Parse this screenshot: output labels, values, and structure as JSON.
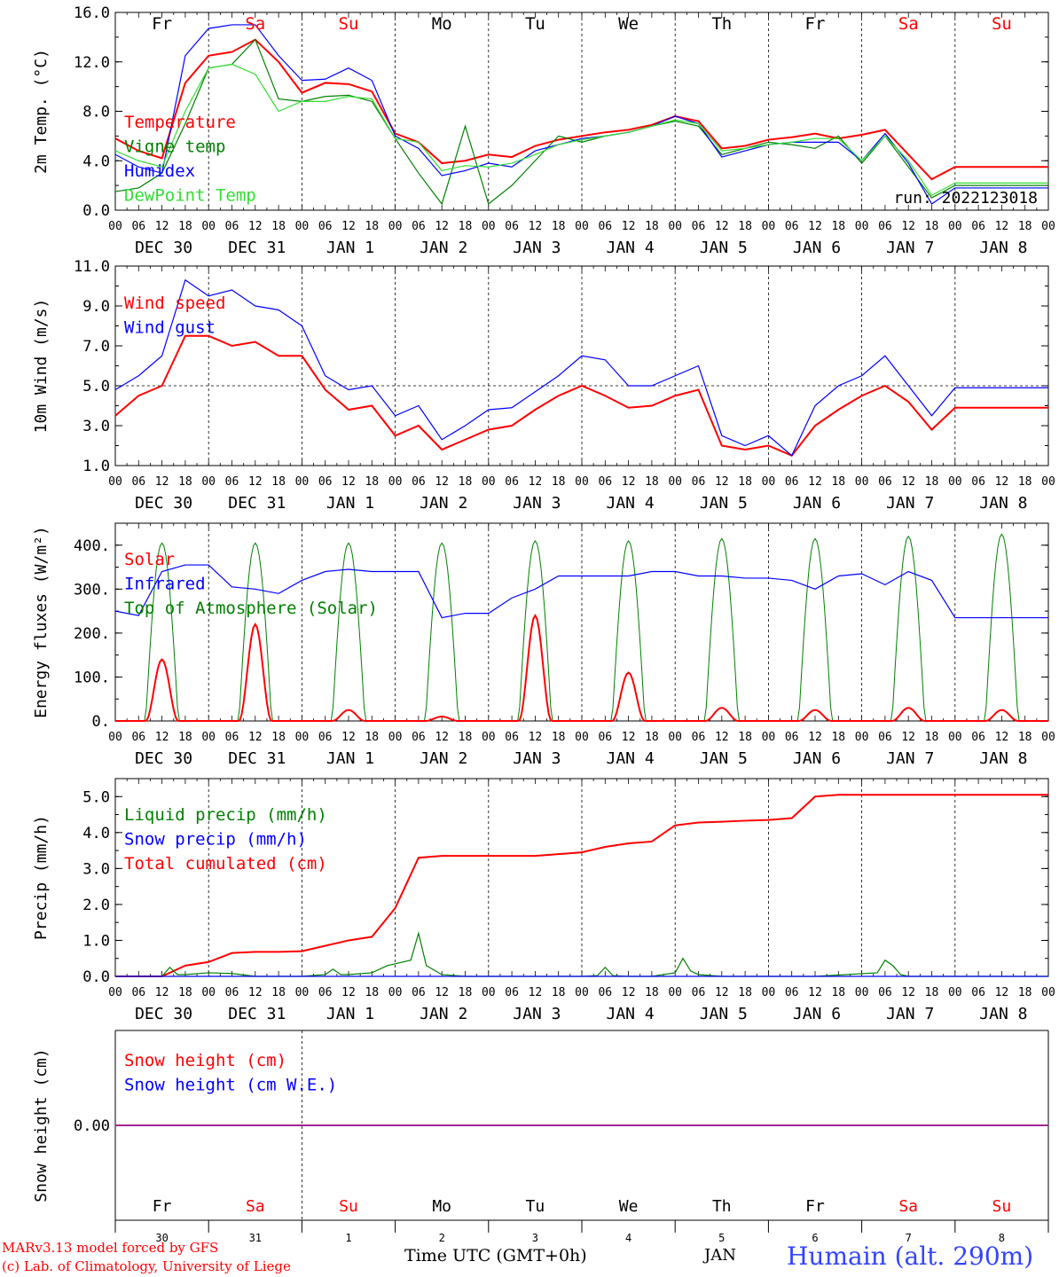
{
  "chart_data": [
    {
      "type": "line",
      "ylabel": "2m Temp. (°C)",
      "ylim": [
        0,
        16
      ],
      "yticks": [
        "0.0",
        "4.0",
        "8.0",
        "12.0",
        "16.0"
      ],
      "run_label": "run: 2022123018",
      "legend": [
        {
          "label": "Temperature",
          "color": "#ff0000"
        },
        {
          "label": "Vigne temp",
          "color": "#008000"
        },
        {
          "label": "Humidex",
          "color": "#0000ff"
        },
        {
          "label": "DewPoint Temp",
          "color": "#33dd33"
        }
      ],
      "series": [
        {
          "name": "Temperature",
          "color": "#ff0000",
          "x": [
            0,
            6,
            12,
            18,
            24,
            30,
            36,
            42,
            48,
            54,
            60,
            66,
            72,
            78,
            84,
            90,
            96,
            102,
            108,
            114,
            120,
            126,
            132,
            138,
            144,
            150,
            156,
            162,
            168,
            174,
            180,
            186,
            192,
            198,
            204,
            210,
            216,
            222,
            228,
            234,
            240
          ],
          "y": [
            5.8,
            4.8,
            4.2,
            10.3,
            12.5,
            12.8,
            13.8,
            12.0,
            9.5,
            10.3,
            10.2,
            9.6,
            6.2,
            5.5,
            3.8,
            4.0,
            4.5,
            4.3,
            5.2,
            5.7,
            6.0,
            6.3,
            6.5,
            6.9,
            7.6,
            7.2,
            5.0,
            5.2,
            5.7,
            5.9,
            6.2,
            5.8,
            6.1,
            6.5,
            4.5,
            2.5,
            3.5,
            3.5,
            3.5,
            3.5,
            3.5
          ]
        },
        {
          "name": "Vigne temp",
          "color": "#008000",
          "x": [
            0,
            6,
            12,
            18,
            24,
            30,
            36,
            42,
            48,
            54,
            60,
            66,
            72,
            78,
            84,
            90,
            96,
            102,
            108,
            114,
            120,
            126,
            132,
            138,
            144,
            150,
            156,
            162,
            168,
            174,
            180,
            186,
            192,
            198,
            204,
            210,
            216,
            222,
            228,
            234,
            240
          ],
          "y": [
            1.5,
            1.8,
            3.0,
            7.0,
            11.5,
            11.8,
            13.8,
            9.0,
            8.8,
            9.2,
            9.3,
            8.8,
            5.8,
            3.0,
            0.5,
            6.8,
            0.5,
            2.0,
            4.0,
            6.0,
            5.5,
            6.0,
            6.3,
            6.8,
            7.2,
            6.8,
            4.5,
            5.0,
            5.5,
            5.3,
            5.0,
            6.0,
            3.8,
            6.0,
            3.5,
            1.0,
            2.0,
            2.0,
            2.0,
            2.0,
            2.0
          ]
        },
        {
          "name": "Humidex",
          "color": "#0000ff",
          "x": [
            0,
            6,
            12,
            18,
            24,
            30,
            36,
            42,
            48,
            54,
            60,
            66,
            72,
            78,
            84,
            90,
            96,
            102,
            108,
            114,
            120,
            126,
            132,
            138,
            144,
            150,
            156,
            162,
            168,
            174,
            180,
            186,
            192,
            198,
            204,
            210,
            216,
            222,
            228,
            234,
            240
          ],
          "y": [
            4.5,
            3.5,
            3.0,
            12.5,
            14.7,
            15.0,
            15.0,
            12.5,
            10.5,
            10.6,
            11.5,
            10.5,
            6.0,
            5.0,
            2.8,
            3.2,
            3.8,
            3.5,
            4.8,
            5.3,
            5.8,
            6.0,
            6.3,
            6.8,
            7.6,
            7.0,
            4.3,
            4.8,
            5.3,
            5.5,
            5.5,
            5.5,
            4.0,
            6.2,
            3.8,
            0.5,
            1.8,
            1.8,
            1.8,
            1.8,
            1.8
          ]
        },
        {
          "name": "DewPoint Temp",
          "color": "#33dd33",
          "x": [
            0,
            6,
            12,
            18,
            24,
            30,
            36,
            42,
            48,
            54,
            60,
            66,
            72,
            78,
            84,
            90,
            96,
            102,
            108,
            114,
            120,
            126,
            132,
            138,
            144,
            150,
            156,
            162,
            168,
            174,
            180,
            186,
            192,
            198,
            204,
            210,
            216,
            222,
            228,
            234,
            240
          ],
          "y": [
            4.8,
            4.0,
            3.5,
            8.0,
            11.5,
            11.8,
            11.0,
            8.0,
            8.8,
            8.8,
            9.2,
            9.0,
            5.8,
            5.5,
            3.2,
            3.6,
            3.5,
            3.8,
            4.5,
            5.3,
            5.7,
            6.0,
            6.3,
            6.8,
            7.3,
            7.0,
            4.8,
            5.0,
            5.3,
            5.5,
            5.8,
            5.8,
            4.0,
            6.0,
            4.0,
            1.2,
            2.2,
            2.2,
            2.2,
            2.2,
            2.2
          ]
        }
      ]
    },
    {
      "type": "line",
      "ylabel": "10m Wind (m/s)",
      "ylim": [
        1,
        11
      ],
      "yticks": [
        "1.0",
        "3.0",
        "5.0",
        "7.0",
        "9.0",
        "11.0"
      ],
      "reference_line": 5.0,
      "legend": [
        {
          "label": "Wind speed",
          "color": "#ff0000"
        },
        {
          "label": "Wind gust",
          "color": "#0000ff"
        }
      ],
      "series": [
        {
          "name": "Wind speed",
          "color": "#ff0000",
          "x": [
            0,
            6,
            12,
            18,
            24,
            30,
            36,
            42,
            48,
            54,
            60,
            66,
            72,
            78,
            84,
            90,
            96,
            102,
            108,
            114,
            120,
            126,
            132,
            138,
            144,
            150,
            156,
            162,
            168,
            174,
            180,
            186,
            192,
            198,
            204,
            210,
            216,
            222,
            228,
            234,
            240
          ],
          "y": [
            3.5,
            4.5,
            5.0,
            7.5,
            7.5,
            7.0,
            7.2,
            6.5,
            6.5,
            4.8,
            3.8,
            4.0,
            2.5,
            3.0,
            1.8,
            2.3,
            2.8,
            3.0,
            3.8,
            4.5,
            5.0,
            4.5,
            3.9,
            4.0,
            4.5,
            4.8,
            2.0,
            1.8,
            2.0,
            1.5,
            3.0,
            3.8,
            4.5,
            5.0,
            4.2,
            2.8,
            3.9,
            3.9,
            3.9,
            3.9,
            3.9
          ]
        },
        {
          "name": "Wind gust",
          "color": "#0000ff",
          "x": [
            0,
            6,
            12,
            18,
            24,
            30,
            36,
            42,
            48,
            54,
            60,
            66,
            72,
            78,
            84,
            90,
            96,
            102,
            108,
            114,
            120,
            126,
            132,
            138,
            144,
            150,
            156,
            162,
            168,
            174,
            180,
            186,
            192,
            198,
            204,
            210,
            216,
            222,
            228,
            234,
            240
          ],
          "y": [
            4.8,
            5.5,
            6.5,
            10.3,
            9.5,
            9.8,
            9.0,
            8.8,
            8.0,
            5.5,
            4.8,
            5.0,
            3.5,
            4.0,
            2.3,
            3.0,
            3.8,
            3.9,
            4.7,
            5.5,
            6.5,
            6.3,
            5.0,
            5.0,
            5.5,
            6.0,
            2.5,
            2.0,
            2.5,
            1.5,
            4.0,
            5.0,
            5.5,
            6.5,
            5.0,
            3.5,
            4.9,
            4.9,
            4.9,
            4.9,
            4.9
          ]
        }
      ]
    },
    {
      "type": "line",
      "ylabel": "Energy fluxes (W/m²)",
      "ylim": [
        0,
        450
      ],
      "yticks": [
        "0.",
        "100.",
        "200.",
        "300.",
        "400."
      ],
      "legend": [
        {
          "label": "Solar",
          "color": "#ff0000"
        },
        {
          "label": "Infrared",
          "color": "#0000ff"
        },
        {
          "label": "Top of Atmosphere (Solar)",
          "color": "#008000"
        }
      ],
      "series": [
        {
          "name": "Infrared",
          "color": "#0000ff",
          "x": [
            0,
            6,
            12,
            18,
            24,
            30,
            36,
            42,
            48,
            54,
            60,
            66,
            72,
            78,
            84,
            90,
            96,
            102,
            108,
            114,
            120,
            126,
            132,
            138,
            144,
            150,
            156,
            162,
            168,
            174,
            180,
            186,
            192,
            198,
            204,
            210,
            216,
            222,
            228,
            234,
            240
          ],
          "y": [
            250,
            240,
            340,
            355,
            355,
            305,
            300,
            290,
            320,
            340,
            345,
            340,
            340,
            340,
            235,
            245,
            245,
            280,
            300,
            330,
            330,
            330,
            330,
            340,
            340,
            330,
            330,
            325,
            325,
            320,
            300,
            330,
            335,
            310,
            340,
            320,
            235,
            235,
            235,
            235,
            235
          ]
        }
      ],
      "solar_daily": {
        "noon_hours": [
          12,
          36,
          60,
          84,
          108,
          132,
          156,
          180,
          204,
          228
        ],
        "toa_peaks": [
          405,
          405,
          405,
          405,
          410,
          410,
          415,
          415,
          420,
          425
        ],
        "solar_peaks": [
          140,
          220,
          25,
          10,
          240,
          110,
          30,
          25,
          30,
          25
        ],
        "half_width_hours": 4.2
      }
    },
    {
      "type": "line",
      "ylabel": "Precip (mm/h)",
      "ylim": [
        0,
        5.5
      ],
      "yticks": [
        "0.0",
        "1.0",
        "2.0",
        "3.0",
        "4.0",
        "5.0"
      ],
      "legend": [
        {
          "label": "Liquid precip (mm/h)",
          "color": "#008000"
        },
        {
          "label": "Snow precip (mm/h)",
          "color": "#0000ff"
        },
        {
          "label": "Total cumulated (cm)",
          "color": "#ff0000"
        }
      ],
      "series": [
        {
          "name": "Total cumulated (cm)",
          "color": "#ff0000",
          "x": [
            0,
            6,
            12,
            18,
            24,
            30,
            36,
            42,
            48,
            54,
            60,
            66,
            72,
            78,
            84,
            90,
            96,
            102,
            108,
            114,
            120,
            126,
            132,
            138,
            144,
            150,
            156,
            162,
            168,
            174,
            180,
            186,
            192,
            198,
            204,
            210,
            216,
            222,
            228,
            234,
            240
          ],
          "y": [
            0,
            0,
            0,
            0.3,
            0.4,
            0.65,
            0.68,
            0.68,
            0.7,
            0.85,
            1.0,
            1.1,
            1.9,
            3.3,
            3.35,
            3.35,
            3.35,
            3.35,
            3.35,
            3.4,
            3.45,
            3.6,
            3.7,
            3.75,
            4.2,
            4.28,
            4.3,
            4.33,
            4.35,
            4.4,
            5.0,
            5.05,
            5.05,
            5.05,
            5.05,
            5.05,
            5.05,
            5.05,
            5.05,
            5.05,
            5.05
          ]
        },
        {
          "name": "Liquid precip (mm/h)",
          "color": "#008000",
          "x": [
            0,
            6,
            12,
            14,
            16,
            18,
            24,
            30,
            36,
            42,
            48,
            54,
            56,
            58,
            60,
            66,
            70,
            72,
            76,
            78,
            80,
            84,
            90,
            96,
            102,
            108,
            114,
            120,
            124,
            126,
            128,
            132,
            138,
            144,
            146,
            148,
            150,
            156,
            162,
            168,
            174,
            180,
            196,
            198,
            200,
            202,
            204,
            210,
            216,
            240
          ],
          "y": [
            0,
            0,
            0,
            0.25,
            0.05,
            0.05,
            0.1,
            0.08,
            0.0,
            0.0,
            0.0,
            0.05,
            0.2,
            0.05,
            0.05,
            0.1,
            0.3,
            0.35,
            0.45,
            1.2,
            0.3,
            0.05,
            0.0,
            0.0,
            0.0,
            0.0,
            0.0,
            0.0,
            0.02,
            0.25,
            0.02,
            0.0,
            0.0,
            0.1,
            0.5,
            0.15,
            0.05,
            0.0,
            0.0,
            0.0,
            0.0,
            0.0,
            0.1,
            0.45,
            0.3,
            0.05,
            0.0,
            0.0,
            0.0,
            0.0
          ]
        },
        {
          "name": "Snow precip (mm/h)",
          "color": "#0000ff",
          "x": [
            0,
            240
          ],
          "y": [
            0,
            0
          ]
        }
      ]
    },
    {
      "type": "line",
      "ylabel": "Snow height (cm)",
      "ylim": [
        -1,
        1
      ],
      "yticks": [
        "0.00"
      ],
      "legend": [
        {
          "label": "Snow height (cm)",
          "color": "#ff0000"
        },
        {
          "label": "Snow height (cm W.E.)",
          "color": "#0000ff"
        }
      ],
      "series": [
        {
          "name": "Snow height (cm)",
          "color": "#ff0000",
          "x": [
            0,
            240
          ],
          "y": [
            0,
            0
          ]
        },
        {
          "name": "Snow height (cm W.E.)",
          "color": "#0000ff",
          "x": [
            0,
            240
          ],
          "y": [
            0,
            0
          ]
        }
      ]
    }
  ],
  "axis": {
    "hour_ticks": [
      "00",
      "06",
      "12",
      "18"
    ],
    "day_names": [
      "Fr",
      "Sa",
      "Su",
      "Mo",
      "Tu",
      "We",
      "Th",
      "Fr",
      "Sa",
      "Su"
    ],
    "weekend_color": "#ff0000",
    "weekday_color": "#000000",
    "date_labels": [
      "DEC 30",
      "DEC 31",
      "JAN  1",
      "JAN  2",
      "JAN  3",
      "JAN  4",
      "JAN  5",
      "JAN  6",
      "JAN  7",
      "JAN  8"
    ],
    "bottom_day_numbers": [
      "30",
      "31",
      "1",
      "2",
      "3",
      "4",
      "5",
      "6",
      "7",
      "8"
    ],
    "month_label": "JAN"
  },
  "footer": {
    "model_line1": "MARv3.13 model forced by GFS",
    "model_line2": "(c) Lab. of Climatology, University of Liege",
    "time_label": "Time UTC (GMT+0h)",
    "location": "Humain (alt. 290m)"
  }
}
